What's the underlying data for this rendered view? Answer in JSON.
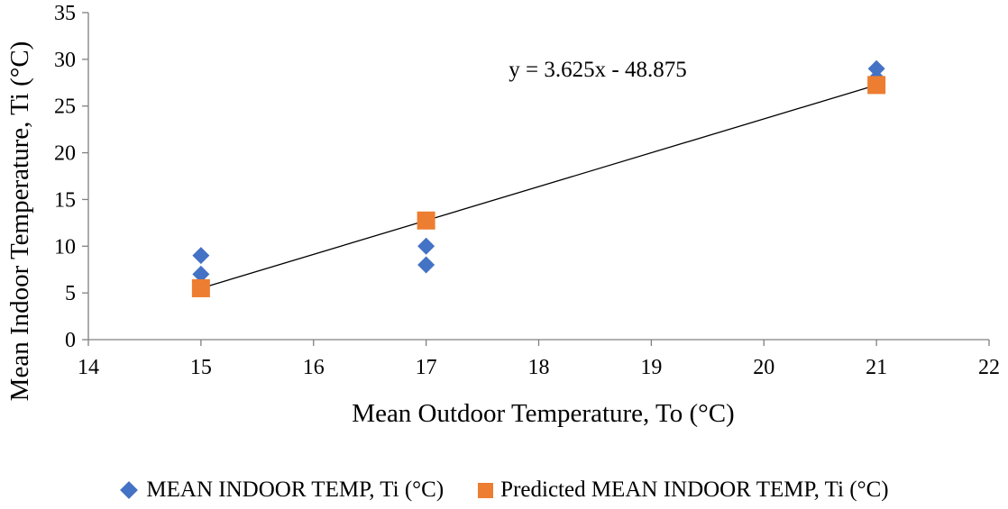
{
  "chart_data": {
    "type": "scatter",
    "title": "",
    "xlabel": "Mean Outdoor Temperature, To (°C)",
    "ylabel": "Mean Indoor Temperature, Ti (°C)",
    "xlim": [
      14,
      22
    ],
    "ylim": [
      0,
      35
    ],
    "xticks": [
      "14",
      "15",
      "16",
      "17",
      "18",
      "19",
      "20",
      "21",
      "22"
    ],
    "yticks": [
      "0",
      "5",
      "10",
      "15",
      "20",
      "25",
      "30",
      "35"
    ],
    "grid": false,
    "legend_position": "bottom",
    "series": [
      {
        "name": "MEAN INDOOR TEMP, Ti (°C)",
        "marker": "diamond",
        "color": "#4472C4",
        "points": [
          {
            "x": 15,
            "y": 9
          },
          {
            "x": 15,
            "y": 7
          },
          {
            "x": 17,
            "y": 10
          },
          {
            "x": 17,
            "y": 8
          },
          {
            "x": 21,
            "y": 29
          },
          {
            "x": 21,
            "y": 28
          }
        ]
      },
      {
        "name": "Predicted MEAN INDOOR TEMP, Ti (°C)",
        "marker": "square",
        "color": "#ED7D31",
        "points": [
          {
            "x": 15,
            "y": 5.5
          },
          {
            "x": 17,
            "y": 12.75
          },
          {
            "x": 21,
            "y": 27.25
          }
        ]
      }
    ],
    "trendline": {
      "label": "y = 3.625x - 48.875",
      "slope": 3.625,
      "intercept": -48.875,
      "x_range": [
        15,
        21
      ],
      "color": "#000000"
    }
  }
}
